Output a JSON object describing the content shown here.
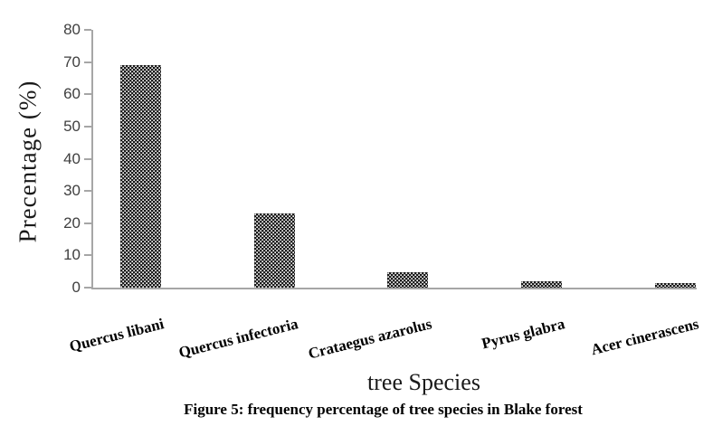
{
  "figure": {
    "caption": "Figure 5: frequency percentage of tree species in Blake forest"
  },
  "chart_data": {
    "type": "bar",
    "title": "",
    "categories": [
      "Quercus libani",
      "Quercus infectoria",
      "Crataegus azarolus",
      "Pyrus glabra",
      "Acer cinerascens"
    ],
    "values": [
      69,
      23,
      4.8,
      2.1,
      1.4
    ],
    "xlabel": "tree Species",
    "ylabel": "Precentage (%)",
    "ylim": [
      0,
      80
    ],
    "yticks": [
      0,
      10,
      20,
      30,
      40,
      50,
      60,
      70,
      80
    ],
    "grid": false,
    "legend": false,
    "bar_pattern": "white-dots-on-black",
    "bar_color": "#0e0e0e",
    "axis_color": "#a6a6a6",
    "tick_label_color": "#3f3f3f",
    "text_color": "#1a1a1a"
  }
}
